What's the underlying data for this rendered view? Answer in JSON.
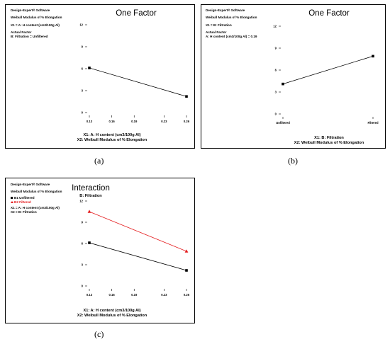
{
  "panels": [
    {
      "id": "a",
      "software": "Design-Expert® Software",
      "response": "Weibull Modulus of % Elongation",
      "x1_line": "X1 = A: H content (cm3/100g Al)",
      "actual_factor_header": "Actual Factor",
      "actual_factor_value": "B: Filtration = Unfiltered",
      "title": "One Factor",
      "xlabel1": "X1: A: H content (cm3/100g Al)",
      "xlabel2": "X2: Weibull Modulus of % Elongation",
      "caption": "(a)"
    },
    {
      "id": "b",
      "software": "Design-Expert® Software",
      "response": "Weibull Modulus of % Elongation",
      "x1_line": "X1 = B: Filtration",
      "actual_factor_header": "Actual Factor",
      "actual_factor_value": "A: H content (cm3/100g Al) = 0.19",
      "title": "One Factor",
      "xlabel1": "X1: B: Filtration",
      "xlabel2": "X2: Weibull Modulus of % Elongation",
      "caption": "(b)"
    },
    {
      "id": "c",
      "software": "Design-Expert® Software",
      "response": "Weibull Modulus of % Elongation",
      "legend1": "B1 Unfiltered",
      "legend2": "B2 Filtered",
      "x1_line": "X1 = A: H content (cm3/100g Al)",
      "x2_line": "X2 = B: Filtration",
      "title": "Interaction",
      "subtitle": "B: Filtration",
      "xlabel1": "X1: A: H content (cm3/100g Al)",
      "xlabel2": "X2: Weibull Modulus of % Elongation",
      "caption": "(c)"
    }
  ],
  "chart_data": [
    {
      "type": "line",
      "title": "One Factor",
      "xlabel": "X1: A: H content (cm3/100g Al)",
      "ylabel": "",
      "x_ticks": [
        "0.13",
        "0.16",
        "0.19",
        "0.23",
        "0.26"
      ],
      "y_ticks": [
        "0",
        "3",
        "6",
        "9",
        "12"
      ],
      "xlim": [
        0.13,
        0.26
      ],
      "ylim": [
        0,
        12
      ],
      "series": [
        {
          "x": [
            0.13,
            0.26
          ],
          "y": [
            6.1,
            2.2
          ],
          "color": "#000000",
          "marker": "square"
        }
      ]
    },
    {
      "type": "line",
      "title": "One Factor",
      "xlabel": "X1: B: Filtration",
      "ylabel": "",
      "categories": [
        "Unfiltered",
        "Filtered"
      ],
      "y_ticks": [
        "0",
        "3",
        "6",
        "9",
        "12"
      ],
      "ylim": [
        0,
        12
      ],
      "series": [
        {
          "values": [
            4.1,
            7.9
          ],
          "color": "#000000",
          "marker": "square"
        }
      ]
    },
    {
      "type": "line",
      "title": "Interaction",
      "subtitle": "B: Filtration",
      "xlabel": "X1: A: H content (cm3/100g Al)",
      "ylabel": "",
      "x_ticks": [
        "0.13",
        "0.16",
        "0.19",
        "0.23",
        "0.26"
      ],
      "y_ticks": [
        "0",
        "3",
        "6",
        "9",
        "12"
      ],
      "xlim": [
        0.13,
        0.26
      ],
      "ylim": [
        0,
        12
      ],
      "legend_position": "top-left",
      "series": [
        {
          "name": "B1 Unfiltered",
          "x": [
            0.13,
            0.26
          ],
          "y": [
            6.1,
            2.2
          ],
          "color": "#000000",
          "marker": "square"
        },
        {
          "name": "B2 Filtered",
          "x": [
            0.13,
            0.26
          ],
          "y": [
            10.5,
            4.9
          ],
          "color": "#e41a1c",
          "marker": "triangle"
        }
      ]
    }
  ]
}
